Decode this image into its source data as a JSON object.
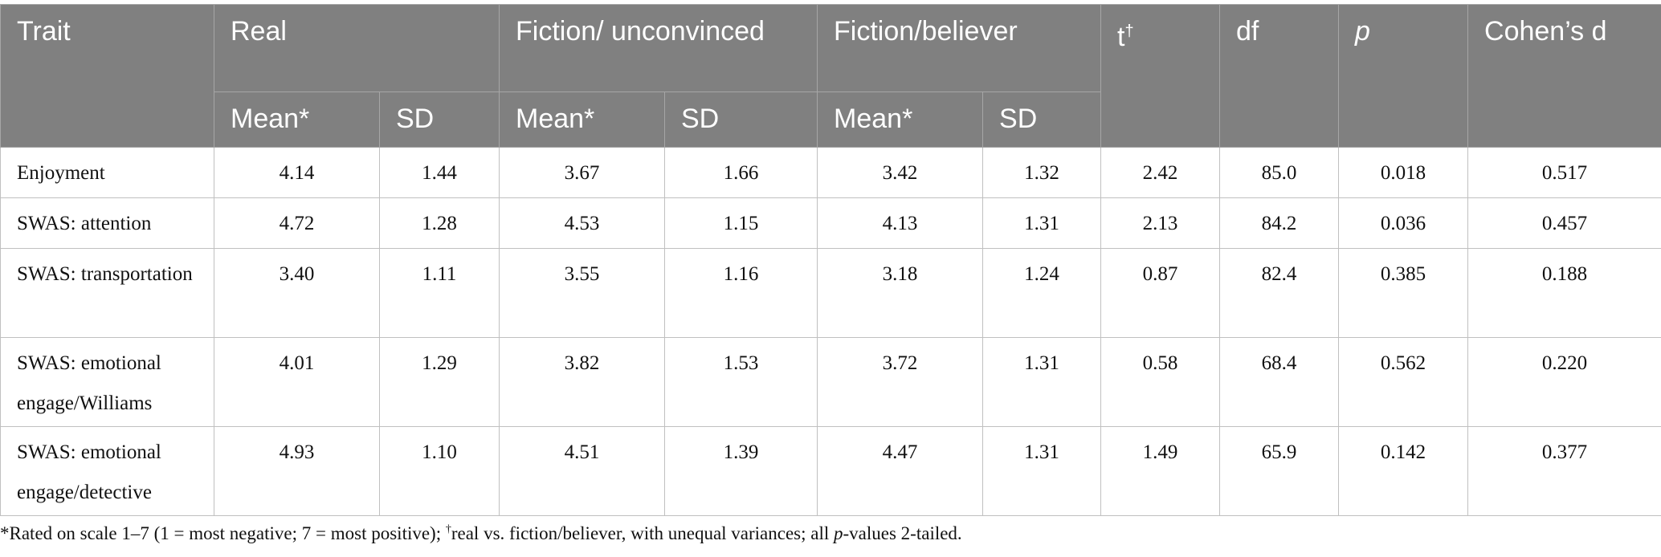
{
  "table": {
    "headers": {
      "trait": "Trait",
      "real": "Real",
      "fiction_unconvinced": "Fiction/ unconvinced",
      "fiction_believer": "Fiction/believer",
      "t": "t",
      "t_mark": "†",
      "df": "df",
      "p": "p",
      "cohens_d": "Cohen’s d",
      "mean": "Mean*",
      "sd": "SD"
    },
    "rows": [
      {
        "trait": "Enjoyment",
        "real_mean": "4.14",
        "real_sd": "1.44",
        "fu_mean": "3.67",
        "fu_sd": "1.66",
        "fb_mean": "3.42",
        "fb_sd": "1.32",
        "t": "2.42",
        "df": "85.0",
        "p": "0.018",
        "d": "0.517"
      },
      {
        "trait": "SWAS: attention",
        "real_mean": "4.72",
        "real_sd": "1.28",
        "fu_mean": "4.53",
        "fu_sd": "1.15",
        "fb_mean": "4.13",
        "fb_sd": "1.31",
        "t": "2.13",
        "df": "84.2",
        "p": "0.036",
        "d": "0.457"
      },
      {
        "trait": "SWAS: transportation",
        "real_mean": "3.40",
        "real_sd": "1.11",
        "fu_mean": "3.55",
        "fu_sd": "1.16",
        "fb_mean": "3.18",
        "fb_sd": "1.24",
        "t": "0.87",
        "df": "82.4",
        "p": "0.385",
        "d": "0.188"
      },
      {
        "trait": "SWAS: emotional engage/Williams",
        "real_mean": "4.01",
        "real_sd": "1.29",
        "fu_mean": "3.82",
        "fu_sd": "1.53",
        "fb_mean": "3.72",
        "fb_sd": "1.31",
        "t": "0.58",
        "df": "68.4",
        "p": "0.562",
        "d": "0.220"
      },
      {
        "trait": "SWAS: emotional engage/detective",
        "real_mean": "4.93",
        "real_sd": "1.10",
        "fu_mean": "4.51",
        "fu_sd": "1.39",
        "fb_mean": "4.47",
        "fb_sd": "1.31",
        "t": "1.49",
        "df": "65.9",
        "p": "0.142",
        "d": "0.377"
      }
    ]
  },
  "footnote": {
    "star_part": "*Rated on scale 1–7 (1 = most negative; 7 = most positive); ",
    "dagger": "†",
    "middle": "real vs. fiction/believer, with unequal variances; all ",
    "p_italic": "p",
    "end": "-values 2-tailed."
  }
}
